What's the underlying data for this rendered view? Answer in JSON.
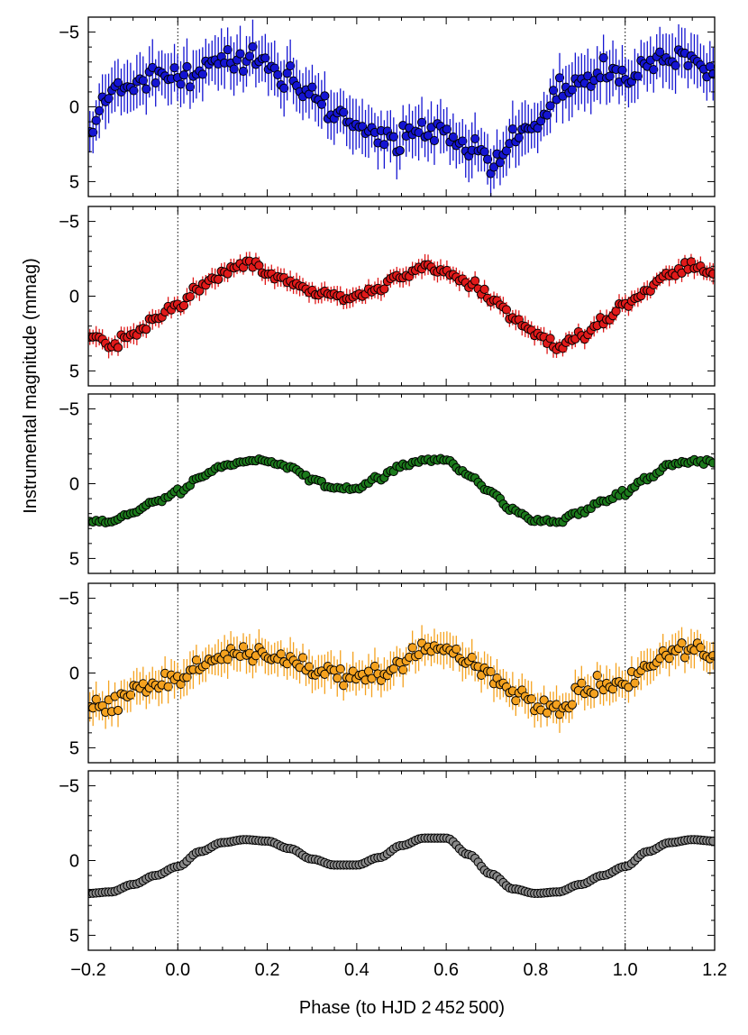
{
  "chart_data": {
    "type": "scatter",
    "layout": "5 vertically stacked panels sharing one x axis",
    "xlabel": "Phase (to HJD 2 452 500)",
    "ylabel": "Instrumental magnitude (mmag)",
    "xlim": [
      -0.2,
      1.2
    ],
    "ylim": [
      6,
      -6
    ],
    "y_axis_inverted": true,
    "xticks": [
      -0.2,
      0.0,
      0.2,
      0.4,
      0.6,
      0.8,
      1.0,
      1.2
    ],
    "xtick_labels": [
      "−0.2",
      "0.0",
      "0.2",
      "0.4",
      "0.6",
      "0.8",
      "1.0",
      "1.2"
    ],
    "yticks": [
      -5,
      0,
      5
    ],
    "ytick_labels": [
      "−5",
      "0",
      "5"
    ],
    "reference_lines_x": [
      0.0,
      1.0
    ],
    "marker_edge_color": "#000000",
    "panels": [
      {
        "name": "blue",
        "color": "#1515d2",
        "errorbar_mmag": 1.6,
        "mean_curve": {
          "phase": [
            0.0,
            0.05,
            0.1,
            0.15,
            0.2,
            0.25,
            0.3,
            0.35,
            0.4,
            0.45,
            0.5,
            0.55,
            0.6,
            0.65,
            0.7,
            0.75,
            0.8,
            0.85,
            0.9,
            0.95,
            1.0
          ],
          "mag": [
            -2.0,
            -2.5,
            -3.3,
            -3.0,
            -2.6,
            -1.8,
            -0.6,
            0.3,
            0.9,
            1.8,
            2.0,
            1.9,
            2.0,
            2.8,
            3.6,
            2.3,
            1.1,
            -0.8,
            -1.6,
            -2.0,
            -2.0
          ]
        },
        "scatter_mmag": 0.75
      },
      {
        "name": "red",
        "color": "#e01a1a",
        "errorbar_mmag": 0.6,
        "mean_curve": {
          "phase": [
            0.0,
            0.05,
            0.1,
            0.15,
            0.2,
            0.25,
            0.3,
            0.35,
            0.4,
            0.45,
            0.5,
            0.55,
            0.6,
            0.65,
            0.7,
            0.75,
            0.8,
            0.85,
            0.9,
            0.95,
            1.0
          ],
          "mag": [
            0.6,
            -0.5,
            -1.6,
            -2.2,
            -1.6,
            -1.0,
            -0.2,
            -0.1,
            0.2,
            -0.6,
            -1.4,
            -1.9,
            -1.7,
            -0.8,
            0.0,
            1.4,
            2.5,
            3.2,
            2.7,
            1.6,
            0.4
          ]
        },
        "scatter_mmag": 0.3
      },
      {
        "name": "green",
        "color": "#1c7a1c",
        "errorbar_mmag": 0.2,
        "mean_curve": {
          "phase": [
            0.0,
            0.05,
            0.1,
            0.15,
            0.2,
            0.25,
            0.3,
            0.35,
            0.4,
            0.45,
            0.5,
            0.55,
            0.6,
            0.65,
            0.7,
            0.75,
            0.8,
            0.85,
            0.9,
            0.95,
            1.0
          ],
          "mag": [
            0.6,
            -0.4,
            -1.2,
            -1.5,
            -1.5,
            -1.1,
            -0.3,
            0.3,
            0.3,
            -0.4,
            -1.2,
            -1.6,
            -1.6,
            -0.6,
            0.6,
            1.8,
            2.5,
            2.6,
            1.9,
            1.2,
            0.5
          ]
        },
        "scatter_mmag": 0.12
      },
      {
        "name": "orange",
        "color": "#f5a21f",
        "errorbar_mmag": 1.1,
        "mean_curve": {
          "phase": [
            0.0,
            0.05,
            0.1,
            0.15,
            0.2,
            0.25,
            0.3,
            0.35,
            0.4,
            0.45,
            0.5,
            0.55,
            0.6,
            0.65,
            0.7,
            0.75,
            0.8,
            0.85,
            0.9,
            0.95,
            1.0
          ],
          "mag": [
            0.6,
            -0.4,
            -1.2,
            -1.4,
            -1.2,
            -0.8,
            -0.2,
            0.0,
            0.4,
            0.0,
            -0.8,
            -1.6,
            -1.6,
            -0.8,
            0.3,
            1.2,
            2.2,
            2.2,
            1.4,
            0.8,
            0.6
          ]
        },
        "scatter_mmag": 0.55
      },
      {
        "name": "gray",
        "color": "#8a8a8a",
        "errorbar_mmag": 0,
        "mean_curve": {
          "phase": [
            0.0,
            0.05,
            0.1,
            0.15,
            0.2,
            0.25,
            0.3,
            0.35,
            0.4,
            0.45,
            0.5,
            0.55,
            0.6,
            0.65,
            0.7,
            0.75,
            0.8,
            0.85,
            0.9,
            0.95,
            1.0
          ],
          "mag": [
            0.4,
            -0.6,
            -1.2,
            -1.4,
            -1.3,
            -0.8,
            -0.1,
            0.3,
            0.3,
            -0.2,
            -1.0,
            -1.5,
            -1.5,
            -0.4,
            0.9,
            1.9,
            2.2,
            2.1,
            1.6,
            1.0,
            0.4
          ]
        },
        "scatter_mmag": 0.0
      }
    ]
  }
}
